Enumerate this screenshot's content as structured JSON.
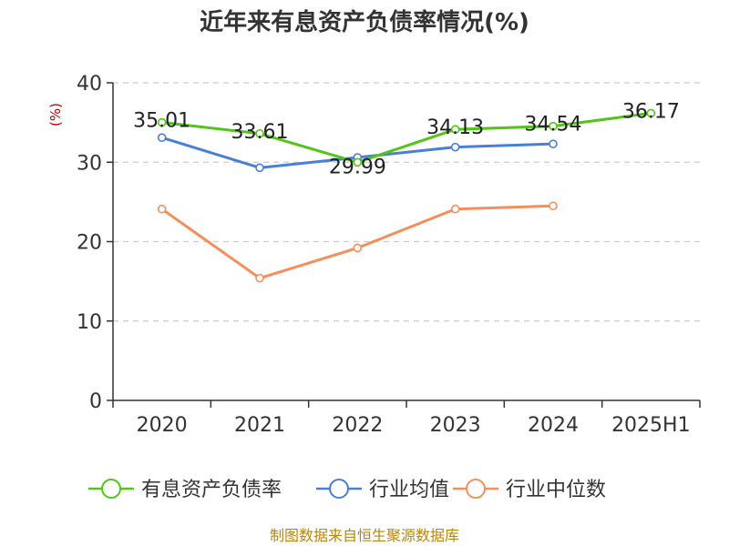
{
  "chart_data": {
    "type": "line",
    "title": "近年来有息资产负债率情况(%)",
    "ylabel": "(%)",
    "xlabel": "",
    "categories": [
      "2020",
      "2021",
      "2022",
      "2023",
      "2024",
      "2025H1"
    ],
    "ylim": [
      0,
      40
    ],
    "yticks": [
      0,
      10,
      20,
      30,
      40
    ],
    "grid": true,
    "legend_position": "bottom",
    "series": [
      {
        "name": "有息资产负债率",
        "color": "#52c41a",
        "values": [
          35.01,
          33.61,
          29.99,
          34.13,
          34.54,
          36.17
        ],
        "data_labels": [
          "35.01",
          "33.61",
          "29.99",
          "34.13",
          "34.54",
          "36.17"
        ]
      },
      {
        "name": "行业均值",
        "color": "#4a7fd8",
        "values": [
          33.1,
          29.3,
          30.6,
          31.9,
          32.3,
          null
        ]
      },
      {
        "name": "行业中位数",
        "color": "#f58e5a",
        "values": [
          24.1,
          15.4,
          19.2,
          24.1,
          24.5,
          null
        ]
      }
    ]
  },
  "footer": {
    "source": "制图数据来自恒生聚源数据库"
  }
}
